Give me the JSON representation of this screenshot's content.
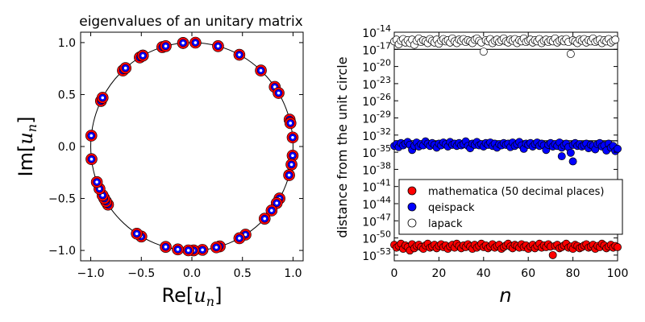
{
  "chart_data": [
    {
      "type": "scatter",
      "title": "eigenvalues of an unitary matrix",
      "xlabel": "Re[u_n]",
      "ylabel": "Im[u_n]",
      "xlabel_parts": [
        "Re[",
        "u",
        "n",
        "]"
      ],
      "ylabel_parts": [
        "Im[",
        "u",
        "n",
        "]"
      ],
      "xlim": [
        -1.1,
        1.1
      ],
      "ylim": [
        -1.1,
        1.1
      ],
      "xticks": [
        -1.0,
        -0.5,
        0.0,
        0.5,
        1.0
      ],
      "xtick_labels": [
        "−1.0",
        "−0.5",
        "0.0",
        "0.5",
        "1.0"
      ],
      "yticks": [
        -1.0,
        -0.5,
        0.0,
        0.5,
        1.0
      ],
      "ytick_labels": [
        "−1.0",
        "−0.5",
        "0.0",
        "0.5",
        "1.0"
      ],
      "unit_circle": true,
      "marker_colors": {
        "outer": "#ff0000",
        "middle": "#0000ff",
        "inner": "#ffffff"
      },
      "angles_deg": [
        95,
        88,
        75,
        62,
        47,
        35,
        31,
        15,
        13,
        5,
        -5,
        -10,
        -16,
        -30,
        -33,
        -38,
        -44,
        -58,
        -62,
        -74,
        -76,
        -84,
        -89,
        -92,
        -98,
        -105,
        -120,
        -123,
        -146,
        -148,
        -150,
        -152,
        -156,
        -160,
        -173,
        -186,
        -206,
        -208,
        -227,
        -229,
        -239,
        -241,
        -241,
        -253,
        -255,
        -265
      ]
    },
    {
      "type": "scatter",
      "xlabel": "n",
      "ylabel": "distance from the unit circle",
      "yscale": "log",
      "xlim": [
        0,
        100
      ],
      "ylim_exp": [
        -54,
        -14
      ],
      "xticks": [
        0,
        20,
        40,
        60,
        80,
        100
      ],
      "xtick_labels": [
        "0",
        "20",
        "40",
        "60",
        "80",
        "100"
      ],
      "ytick_exponents": [
        -14,
        -17,
        -20,
        -23,
        -26,
        -29,
        -32,
        -35,
        -38,
        -41,
        -44,
        -47,
        -50,
        -53
      ],
      "ytick_base": "10",
      "ytick_labels": [
        "-14",
        "-17",
        "-20",
        "-23",
        "-26",
        "-29",
        "-32",
        "-35",
        "-38",
        "-41",
        "-44",
        "-47",
        "-50",
        "-53"
      ],
      "legend": {
        "placement": "center-right",
        "entries": [
          "mathematica (50 decimal places)",
          "qeispack",
          "lapack"
        ]
      },
      "series": [
        {
          "name": "lapack",
          "color": "#ffffff",
          "edge": "#000000",
          "log10_values": [
            -15.6,
            -15.3,
            -16.1,
            -15.5,
            -15.2,
            -15.8,
            -15.4,
            -15.9,
            -15.3,
            -16.2,
            -15.5,
            -15.1,
            -15.7,
            -15.4,
            -15.6,
            -15.9,
            -15.2,
            -15.5,
            -15.8,
            -15.3,
            -16.0,
            -15.5,
            -15.2,
            -15.6,
            -15.4,
            -15.8,
            -15.1,
            -15.6,
            -15.9,
            -15.3,
            -15.5,
            -15.2,
            -15.7,
            -15.4,
            -15.6,
            -15.9,
            -15.3,
            -15.1,
            -15.5,
            -15.8,
            -17.4,
            -15.4,
            -15.6,
            -15.2,
            -15.9,
            -15.5,
            -15.3,
            -15.7,
            -15.4,
            -15.1,
            -15.6,
            -15.8,
            -15.3,
            -15.5,
            -15.2,
            -15.9,
            -15.4,
            -15.6,
            -15.1,
            -15.7,
            -15.5,
            -15.3,
            -15.8,
            -15.4,
            -15.6,
            -15.2,
            -15.9,
            -15.5,
            -15.3,
            -15.7,
            -15.4,
            -15.6,
            -15.1,
            -15.8,
            -15.5,
            -15.3,
            -15.6,
            -15.2,
            -15.7,
            -17.8,
            -15.4,
            -15.6,
            -15.9,
            -15.3,
            -15.5,
            -15.2,
            -15.8,
            -15.4,
            -15.6,
            -15.1,
            -15.7,
            -15.5,
            -15.3,
            -15.9,
            -15.4,
            -15.6,
            -15.2,
            -15.8,
            -15.5,
            -15.3
          ]
        },
        {
          "name": "qeispack",
          "color": "#0000ff",
          "edge": "#000000",
          "log10_values": [
            -33.9,
            -33.6,
            -34.1,
            -33.4,
            -33.8,
            -33.5,
            -33.2,
            -33.7,
            -34.6,
            -33.9,
            -33.3,
            -34.0,
            -33.6,
            -33.8,
            -33.1,
            -33.5,
            -33.9,
            -33.4,
            -33.7,
            -34.2,
            -33.5,
            -33.8,
            -33.3,
            -33.6,
            -34.0,
            -33.2,
            -33.7,
            -33.5,
            -33.9,
            -33.4,
            -33.8,
            -33.6,
            -33.1,
            -33.9,
            -34.3,
            -33.5,
            -33.7,
            -33.2,
            -33.8,
            -33.6,
            -34.0,
            -33.4,
            -33.7,
            -33.3,
            -33.9,
            -33.5,
            -34.2,
            -33.6,
            -33.8,
            -33.4,
            -33.7,
            -33.5,
            -34.1,
            -33.3,
            -33.9,
            -33.6,
            -33.2,
            -33.8,
            -34.4,
            -33.5,
            -33.7,
            -33.4,
            -34.0,
            -33.6,
            -33.3,
            -33.9,
            -33.5,
            -33.8,
            -34.6,
            -33.7,
            -33.4,
            -34.0,
            -33.6,
            -33.9,
            -33.3,
            -34.2,
            -33.8,
            -33.5,
            -34.1,
            -35.1,
            -33.7,
            -33.4,
            -33.9,
            -33.6,
            -34.0,
            -33.8,
            -33.5,
            -34.3,
            -33.7,
            -33.9,
            -34.5,
            -33.6,
            -33.4,
            -34.0,
            -33.8,
            -34.7,
            -33.5,
            -34.2,
            -33.9,
            -34.8,
            -34.4
          ],
          "outliers": [
            {
              "n": 75,
              "log10": -35.7
            },
            {
              "n": 80,
              "log10": -36.6
            }
          ]
        },
        {
          "name": "mathematica (50 decimal places)",
          "color": "#ff0000",
          "edge": "#000000",
          "log10_values": [
            -51.2,
            -51.7,
            -51.4,
            -51.0,
            -51.9,
            -51.3,
            -51.6,
            -52.2,
            -51.1,
            -51.8,
            -51.4,
            -51.2,
            -51.6,
            -51.9,
            -51.3,
            -51.0,
            -51.7,
            -51.5,
            -51.2,
            -51.8,
            -51.4,
            -51.1,
            -51.6,
            -51.3,
            -51.9,
            -51.5,
            -51.2,
            -51.7,
            -51.0,
            -51.4,
            -51.8,
            -51.3,
            -51.6,
            -51.1,
            -51.5,
            -51.9,
            -51.2,
            -51.7,
            -51.4,
            -51.0,
            -51.6,
            -51.3,
            -51.8,
            -51.5,
            -51.1,
            -51.7,
            -51.4,
            -51.2,
            -51.9,
            -51.6,
            -51.3,
            -51.0,
            -51.5,
            -51.8,
            -51.2,
            -51.4,
            -51.7,
            -51.1,
            -51.6,
            -51.3,
            -51.9,
            -51.5,
            -51.2,
            -51.8,
            -51.4,
            -51.0,
            -51.7,
            -51.3,
            -51.6,
            -51.1,
            -51.5,
            -53.0,
            -51.4,
            -51.2,
            -51.8,
            -51.6,
            -51.3,
            -51.0,
            -51.7,
            -51.5,
            -51.9,
            -51.2,
            -51.4,
            -51.8,
            -51.6,
            -51.3,
            -51.1,
            -51.7,
            -51.5,
            -51.2,
            -51.9,
            -51.4,
            -51.6,
            -51.0,
            -51.3,
            -51.8,
            -51.5,
            -51.2,
            -51.7,
            -51.4,
            -51.6
          ]
        }
      ],
      "hlines_log10": [
        -17,
        -33,
        -51
      ]
    }
  ]
}
